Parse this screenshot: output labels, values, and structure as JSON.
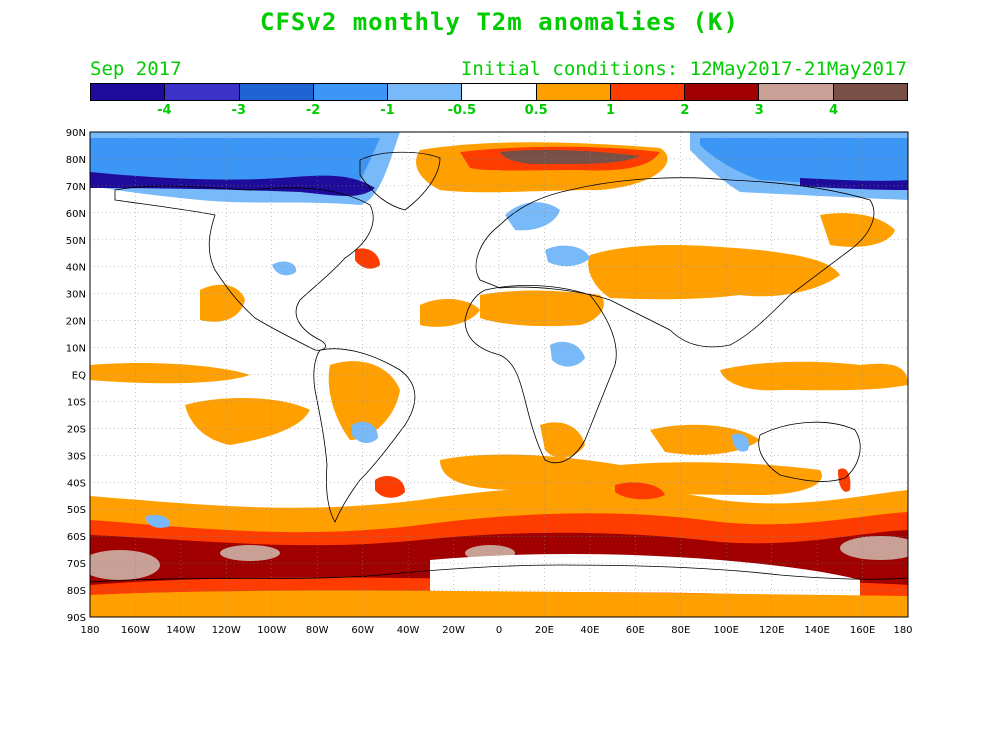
{
  "title": "CFSv2 monthly T2m anomalies (K)",
  "valid_month": "Sep 2017",
  "initial_conditions": "Initial conditions: 12May2017-21May2017",
  "colorbar": {
    "colors": [
      "#1e0a9b",
      "#3c32c8",
      "#1e64d2",
      "#3c96f5",
      "#78b9fa",
      "#ffffff",
      "#ffa000",
      "#ff3c00",
      "#a00000",
      "#c8a096",
      "#785046"
    ],
    "labels": [
      "-4",
      "-3",
      "-2",
      "-1",
      "-0.5",
      "0.5",
      "1",
      "2",
      "3",
      "4"
    ]
  },
  "map": {
    "lat_labels": [
      "90N",
      "80N",
      "70N",
      "60N",
      "50N",
      "40N",
      "30N",
      "20N",
      "10N",
      "EQ",
      "10S",
      "20S",
      "30S",
      "40S",
      "50S",
      "60S",
      "70S",
      "80S",
      "90S"
    ],
    "lon_labels": [
      "180",
      "160W",
      "140W",
      "120W",
      "100W",
      "80W",
      "60W",
      "40W",
      "20W",
      "0",
      "20E",
      "40E",
      "60E",
      "80E",
      "100E",
      "120E",
      "140E",
      "160E",
      "180"
    ]
  }
}
